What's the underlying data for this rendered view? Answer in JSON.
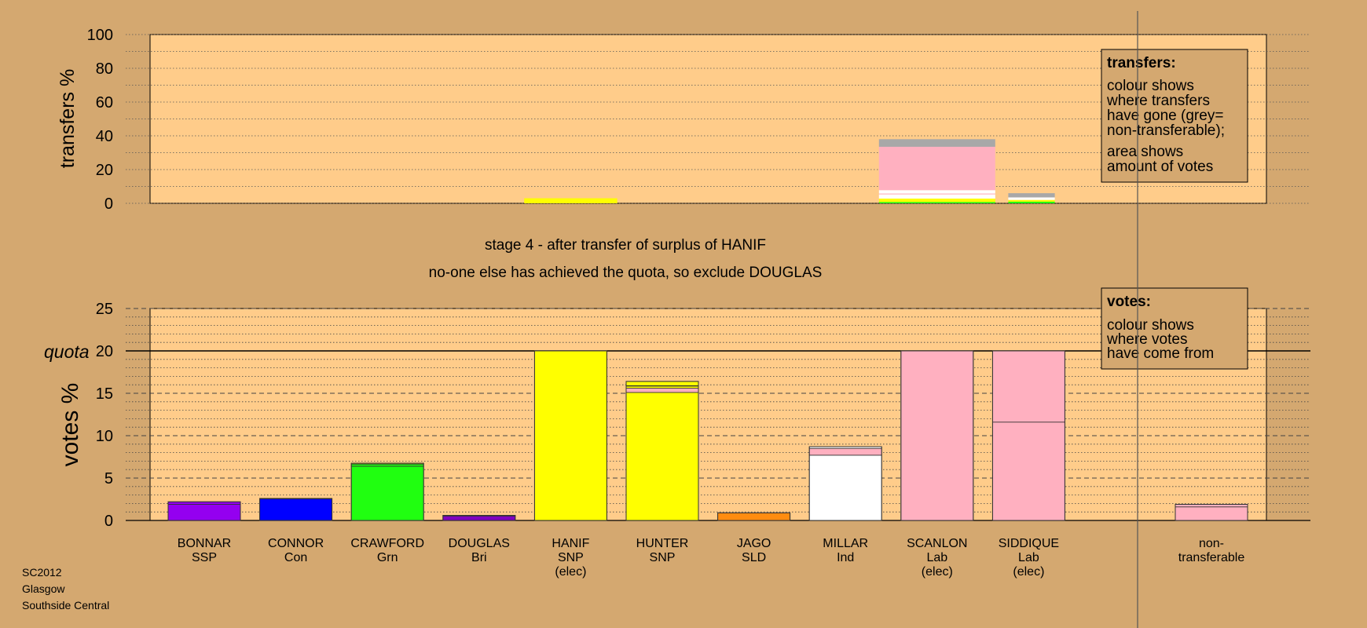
{
  "colors": {
    "background": "#d4a870",
    "plot": "#ffcc8a",
    "SSP": "#9400f0",
    "Con": "#0000ff",
    "Grn": "#20ff10",
    "Bri": "#8000c0",
    "SNP": "#ffff00",
    "SLD": "#ff8c10",
    "Ind": "#ffffff",
    "Lab": "#ffb0c0",
    "nontransferable": "#a8a8a8"
  },
  "chart_data": [
    {
      "type": "bar",
      "name": "transfers",
      "ylabel": "transfers %",
      "ylim": [
        0,
        100
      ],
      "yticks": [
        0,
        20,
        40,
        60,
        80,
        100
      ],
      "grid": true,
      "legend": {
        "title": "transfers:",
        "lines": [
          "colour shows",
          "where transfers",
          "have gone (grey=",
          "non-transferable);",
          "area shows",
          "amount of votes"
        ]
      },
      "bars": [
        {
          "candidate": "HANIF",
          "width_share": 0.8,
          "segments": [
            {
              "party": "SNP",
              "value": 3
            }
          ]
        },
        {
          "candidate": "SCANLON",
          "width_share": 1.0,
          "segments": [
            {
              "party": "Grn",
              "value": 0.8
            },
            {
              "party": "SNP",
              "value": 2
            },
            {
              "party": "Ind",
              "value": 2.5
            },
            {
              "party": "Lab",
              "value": 0.5
            },
            {
              "party": "Ind",
              "value": 2
            },
            {
              "party": "Lab",
              "value": 25.7
            },
            {
              "party": "nontransferable",
              "value": 4.5
            }
          ]
        },
        {
          "candidate": "SIDDIQUE",
          "width_share": 0.4,
          "segments": [
            {
              "party": "Grn",
              "value": 1
            },
            {
              "party": "SNP",
              "value": 1
            },
            {
              "party": "Ind",
              "value": 1.5
            },
            {
              "party": "nontransferable",
              "value": 2.5
            }
          ]
        }
      ]
    },
    {
      "type": "bar",
      "name": "votes",
      "ylabel": "votes %",
      "ylim": [
        0,
        25
      ],
      "yticks": [
        0,
        5,
        10,
        15,
        20,
        25
      ],
      "quota": 20,
      "quota_label": "quota",
      "grid": true,
      "legend": {
        "title": "votes:",
        "lines": [
          "colour shows",
          "where votes",
          "have come from"
        ]
      },
      "bars": [
        {
          "name": "BONNAR",
          "party": "SSP",
          "elected": "",
          "segments": [
            {
              "party": "SSP",
              "value": 1.9
            },
            {
              "party": "SSP",
              "value": 0.3
            }
          ]
        },
        {
          "name": "CONNOR",
          "party": "Con",
          "elected": "",
          "segments": [
            {
              "party": "Con",
              "value": 2.55
            },
            {
              "party": "Con",
              "value": 0.05
            }
          ]
        },
        {
          "name": "CRAWFORD",
          "party": "Grn",
          "elected": "",
          "segments": [
            {
              "party": "Grn",
              "value": 6.4
            },
            {
              "party": "Grn",
              "value": 0.25
            },
            {
              "party": "SNP",
              "value": 0.1
            }
          ]
        },
        {
          "name": "DOUGLAS",
          "party": "Bri",
          "elected": "",
          "segments": [
            {
              "party": "Bri",
              "value": 0.5
            },
            {
              "party": "Bri",
              "value": 0.1
            }
          ]
        },
        {
          "name": "HANIF",
          "party": "SNP",
          "elected": "(elec)",
          "segments": [
            {
              "party": "SNP",
              "value": 20
            }
          ]
        },
        {
          "name": "HUNTER",
          "party": "SNP",
          "elected": "",
          "segments": [
            {
              "party": "SNP",
              "value": 15.1
            },
            {
              "party": "Lab",
              "value": 0.5
            },
            {
              "party": "SNP",
              "value": 0.25
            },
            {
              "party": "SSP",
              "value": 0.05
            },
            {
              "party": "SNP",
              "value": 0.5
            }
          ]
        },
        {
          "name": "JAGO",
          "party": "SLD",
          "elected": "",
          "segments": [
            {
              "party": "SLD",
              "value": 0.9
            }
          ]
        },
        {
          "name": "MILLAR",
          "party": "Ind",
          "elected": "",
          "segments": [
            {
              "party": "Ind",
              "value": 7.7
            },
            {
              "party": "Lab",
              "value": 0.8
            },
            {
              "party": "Ind",
              "value": 0.2
            }
          ]
        },
        {
          "name": "SCANLON",
          "party": "Lab",
          "elected": "(elec)",
          "segments": [
            {
              "party": "Lab",
              "value": 20
            }
          ]
        },
        {
          "name": "SIDDIQUE",
          "party": "Lab",
          "elected": "(elec)",
          "segments": [
            {
              "party": "Lab",
              "value": 11.6
            },
            {
              "party": "Lab",
              "value": 8.4
            }
          ]
        }
      ],
      "nontransferable": {
        "label": [
          "non-",
          "transferable"
        ],
        "segments": [
          {
            "party": "Lab",
            "value": 1.6
          },
          {
            "party": "Lab",
            "value": 0.3
          }
        ]
      }
    }
  ],
  "title_lines": [
    "stage 4 - after transfer of surplus of HANIF",
    "no-one else has achieved the quota, so exclude DOUGLAS"
  ],
  "footer": [
    "SC2012",
    "Glasgow",
    "Southside Central"
  ]
}
